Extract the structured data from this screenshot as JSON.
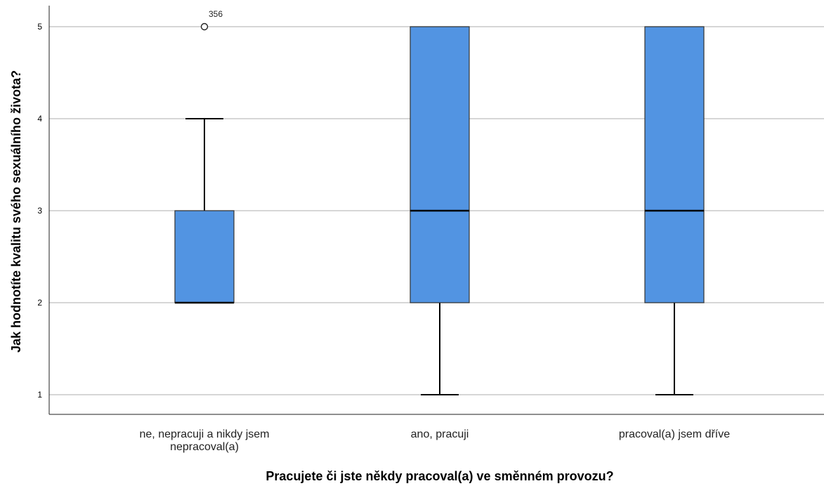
{
  "chart_data": {
    "type": "boxplot",
    "xlabel": "Pracujete či jste někdy pracoval(a) ve směnném provozu?",
    "ylabel": "Jak hodnotíte kvalitu svého sexuálního života?",
    "ylim": [
      0.8,
      5.2
    ],
    "yticks": [
      "1",
      "2",
      "3",
      "4",
      "5"
    ],
    "grid": "horizontal",
    "box_color": "#5294e2",
    "categories": [
      [
        "ne, nepracuji a nikdy jsem",
        "nepracoval(a)"
      ],
      [
        "ano, pracuji"
      ],
      [
        "pracoval(a) jsem dříve"
      ]
    ],
    "boxes": [
      {
        "min": 2,
        "q1": 2,
        "median": 2,
        "q3": 3,
        "max": 4,
        "outliers": [
          {
            "value": 5,
            "label": "356"
          }
        ]
      },
      {
        "min": 1,
        "q1": 2,
        "median": 3,
        "q3": 5,
        "max": 5,
        "outliers": []
      },
      {
        "min": 1,
        "q1": 2,
        "median": 3,
        "q3": 5,
        "max": 5,
        "outliers": []
      }
    ]
  }
}
